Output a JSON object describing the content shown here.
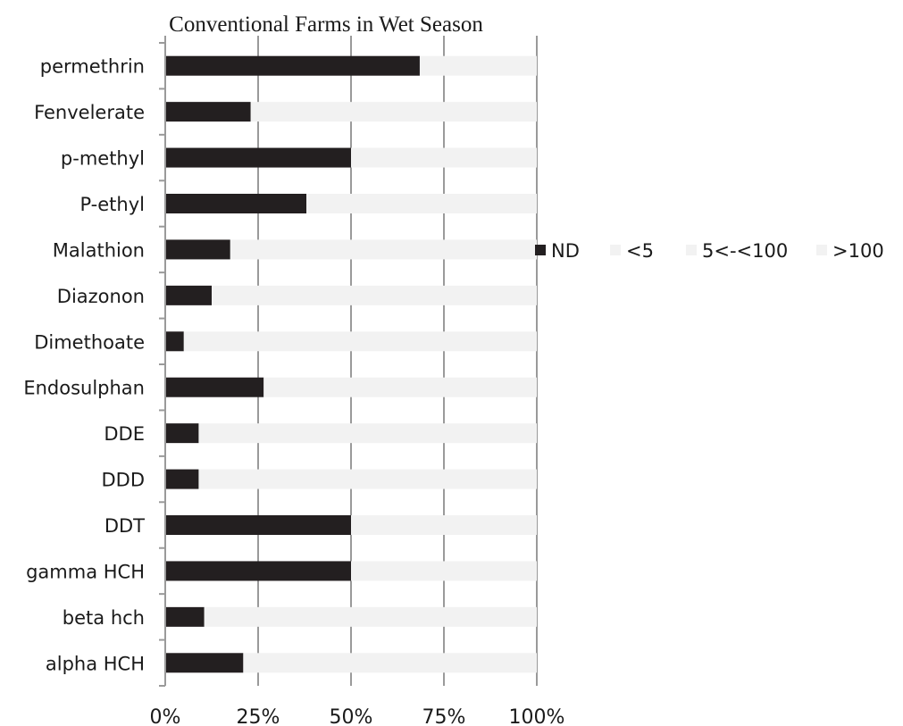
{
  "chart_data": {
    "type": "bar",
    "orientation": "horizontal",
    "stacked": true,
    "normalized": true,
    "title": "Conventional Farms in Wet Season",
    "xlabel": "",
    "ylabel": "",
    "xlim": [
      0,
      100
    ],
    "x_ticks": [
      "0%",
      "25%",
      "50%",
      "75%",
      "100%"
    ],
    "grid": true,
    "legend_position": "right",
    "categories": [
      "permethrin",
      "Fenvelerate",
      "p-methyl",
      "P-ethyl",
      "Malathion",
      "Diazonon",
      "Dimethoate",
      "Endosulphan",
      "DDE",
      "DDD",
      "DDT",
      "gamma HCH",
      "beta hch",
      "alpha HCH"
    ],
    "series": [
      {
        "name": "ND",
        "color": "#231f20",
        "values": [
          68.5,
          23,
          50,
          38,
          17.5,
          12.5,
          5,
          26.5,
          9,
          9,
          50,
          50,
          10.5,
          21
        ]
      },
      {
        "name": "<5",
        "color": "#f2f2f2",
        "values": [
          31.5,
          77,
          50,
          62,
          82.5,
          87.5,
          95,
          73.5,
          91,
          91,
          50,
          50,
          89.5,
          79
        ]
      },
      {
        "name": "5<-<100",
        "color": "#f2f2f2",
        "values": [
          0,
          0,
          0,
          0,
          0,
          0,
          0,
          0,
          0,
          0,
          0,
          0,
          0,
          0
        ]
      },
      {
        "name": ">100",
        "color": "#f2f2f2",
        "values": [
          0,
          0,
          0,
          0,
          0,
          0,
          0,
          0,
          0,
          0,
          0,
          0,
          0,
          0
        ]
      }
    ]
  }
}
